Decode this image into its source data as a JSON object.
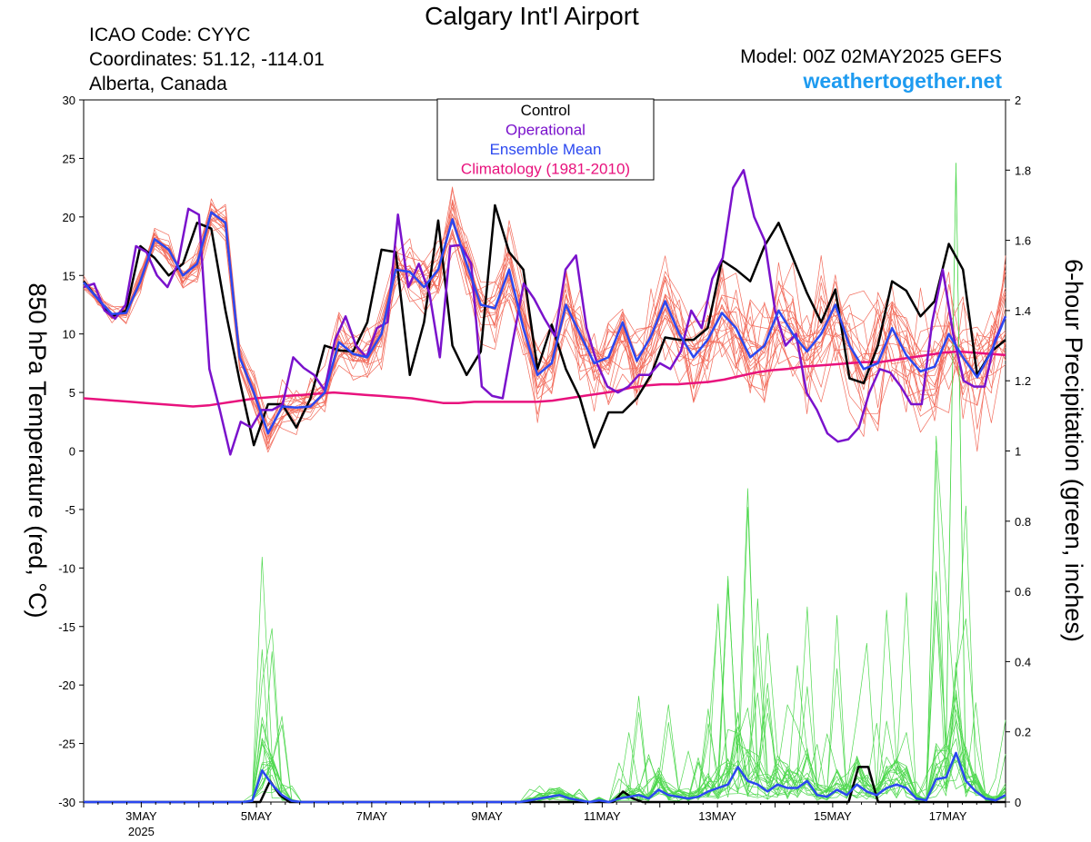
{
  "header": {
    "title": "Calgary Int'l Airport",
    "icao": "ICAO Code: CYYC",
    "coordinates": "Coordinates: 51.12, -114.01",
    "region": "Alberta, Canada",
    "model": "Model: 00Z 02MAY2025 GEFS",
    "site": "weathertogether.net"
  },
  "colors": {
    "ensemble_temp": "#f26b5b",
    "ensemble_precip": "#4fd84f",
    "control": "#000000",
    "operational": "#7a12cc",
    "ensemble_mean": "#2b48f0",
    "climatology": "#e8127d",
    "site": "#1e9bf0"
  },
  "legend": [
    {
      "label": "Control",
      "color": "#000000"
    },
    {
      "label": "Operational",
      "color": "#7a12cc"
    },
    {
      "label": "Ensemble Mean",
      "color": "#2b48f0"
    },
    {
      "label": "Climatology (1981-2010)",
      "color": "#e8127d"
    }
  ],
  "chart_data": {
    "type": "line",
    "xlabel_ticks": [
      "3MAY",
      "5MAY",
      "7MAY",
      "9MAY",
      "11MAY",
      "13MAY",
      "15MAY",
      "17MAY"
    ],
    "year_label": "2025",
    "x_range_days": [
      2.0,
      18.0
    ],
    "y_left": {
      "label": "850 hPa Temperature (red, °C)",
      "range": [
        -30,
        30
      ],
      "ticks": [
        "30",
        "25",
        "20",
        "15",
        "10",
        "5",
        "0",
        "-5",
        "-10",
        "-15",
        "-20",
        "-25",
        "-30"
      ]
    },
    "y_right": {
      "label": "6-hour Precipitation (green, inches)",
      "range": [
        0,
        2
      ],
      "ticks": [
        "2",
        "1.8",
        "1.6",
        "1.4",
        "1.2",
        "1",
        "0.8",
        "0.6",
        "0.4",
        "0.2",
        "0"
      ]
    },
    "temperature": {
      "control": [
        14.5,
        13,
        11.5,
        12,
        17.5,
        16.5,
        15,
        16,
        19.5,
        19,
        12,
        6,
        0.5,
        4,
        4,
        2,
        4.5,
        9,
        8.6,
        8.5,
        11,
        17.2,
        17,
        6.5,
        11,
        19.7,
        9,
        6.5,
        8.5,
        21,
        17,
        15.5,
        7,
        10.8,
        7,
        4.5,
        0.3,
        3.3,
        3.3,
        4.5,
        6.5,
        9.7,
        9.5,
        9.5,
        10.5,
        16.3,
        15.5,
        14.5,
        17.5,
        19.5,
        16.5,
        13.5,
        11,
        13.8,
        6.2,
        5.8,
        9,
        14.5,
        13.7,
        11.5,
        12.8,
        17.7,
        15.5,
        6.5,
        8.5,
        9.5
      ],
      "operational": [
        14,
        14.3,
        12,
        11.3,
        12.5,
        17.5,
        17,
        15,
        14,
        16,
        20.7,
        20.2,
        7,
        3.5,
        -0.3,
        2.5,
        2,
        3.5,
        3.5,
        4,
        8,
        7.1,
        6.5,
        5.2,
        9.5,
        11.5,
        9,
        8,
        10.5,
        11,
        20.2,
        14,
        16,
        13.5,
        8,
        17.5,
        17.6,
        16,
        5.5,
        4.7,
        4.5,
        9.5,
        14.3,
        13,
        11.3,
        9.8,
        15.5,
        16.7,
        10.5,
        7.5,
        5.5,
        5,
        5.5,
        6.5,
        6.5,
        7.5,
        7,
        8.5,
        12,
        10.5,
        14.7,
        16.5,
        22.5,
        24,
        20,
        18,
        12,
        9,
        10,
        5,
        3.5,
        1.5,
        0.8,
        1,
        2,
        5,
        7,
        6.7,
        5.5,
        4,
        4,
        11,
        15.5,
        10,
        6,
        5.5,
        5.5,
        9.5,
        11.5
      ],
      "ensemble_mean": [
        14.4,
        13,
        11.7,
        11.8,
        14.5,
        18.1,
        17.2,
        15,
        16,
        20.4,
        19.5,
        8,
        5,
        1.5,
        3.8,
        3.7,
        3.8,
        5,
        9.3,
        8.3,
        8,
        10,
        15.5,
        15.3,
        14,
        15.5,
        19.8,
        16,
        12.5,
        12.2,
        15.5,
        10.5,
        6.5,
        7.5,
        12.5,
        10,
        7.5,
        8,
        11,
        7.7,
        9.8,
        12.8,
        10,
        8,
        9.5,
        11.8,
        10.5,
        8,
        9,
        12,
        10,
        8.5,
        10,
        12.5,
        9,
        7,
        7.5,
        10.5,
        8.2,
        6.8,
        7.2,
        10,
        8,
        6.3,
        8.5,
        11.5
      ],
      "climatology": [
        4.5,
        4.4,
        4.3,
        4.2,
        4.1,
        4.0,
        3.9,
        3.8,
        3.9,
        4.1,
        4.3,
        4.5,
        4.6,
        4.7,
        4.8,
        4.9,
        5.0,
        4.9,
        4.8,
        4.7,
        4.6,
        4.5,
        4.3,
        4.1,
        4.1,
        4.2,
        4.2,
        4.2,
        4.2,
        4.2,
        4.3,
        4.5,
        4.7,
        4.9,
        5.1,
        5.4,
        5.6,
        5.7,
        5.7,
        5.8,
        5.9,
        6.1,
        6.4,
        6.7,
        6.9,
        7.0,
        7.2,
        7.3,
        7.4,
        7.5,
        7.6,
        7.6,
        7.8,
        8.0,
        8.2,
        8.4,
        8.5,
        8.4,
        8.3,
        8.2
      ]
    },
    "precipitation": {
      "control": [
        0,
        0,
        0,
        0,
        0,
        0,
        0,
        0,
        0,
        0,
        0,
        0,
        0,
        0,
        0,
        0,
        0,
        0,
        0,
        0.06,
        0.02,
        0,
        0,
        0,
        0,
        0,
        0,
        0,
        0,
        0,
        0,
        0,
        0,
        0,
        0,
        0,
        0,
        0,
        0,
        0,
        0,
        0,
        0,
        0,
        0,
        0,
        0,
        0,
        0,
        0,
        0,
        0,
        0,
        0,
        0,
        0.03,
        0.01,
        0,
        0,
        0,
        0,
        0,
        0,
        0,
        0,
        0,
        0,
        0,
        0,
        0,
        0,
        0,
        0,
        0,
        0,
        0,
        0,
        0,
        0,
        0.1,
        0.1,
        0,
        0,
        0,
        0,
        0,
        0,
        0,
        0,
        0,
        0,
        0,
        0,
        0,
        0
      ],
      "ensemble_mean": [
        0,
        0,
        0,
        0,
        0,
        0,
        0,
        0,
        0,
        0,
        0,
        0,
        0,
        0,
        0,
        0,
        0,
        0.003,
        0.09,
        0.05,
        0.02,
        0.003,
        0,
        0,
        0,
        0,
        0,
        0,
        0,
        0,
        0,
        0,
        0,
        0,
        0,
        0,
        0,
        0,
        0,
        0,
        0,
        0,
        0,
        0,
        0,
        0.005,
        0.01,
        0.015,
        0.02,
        0.01,
        0.005,
        0,
        0.005,
        0,
        0.01,
        0.015,
        0.02,
        0.01,
        0.035,
        0.02,
        0.015,
        0.01,
        0.015,
        0.03,
        0.04,
        0.05,
        0.1,
        0.06,
        0.05,
        0.03,
        0.05,
        0.04,
        0.04,
        0.06,
        0.02,
        0.015,
        0.035,
        0.02,
        0.05,
        0.03,
        0.02,
        0.04,
        0.05,
        0.04,
        0.01,
        0.005,
        0.065,
        0.07,
        0.14,
        0.06,
        0.03,
        0.01,
        0.005,
        0.02
      ]
    }
  }
}
